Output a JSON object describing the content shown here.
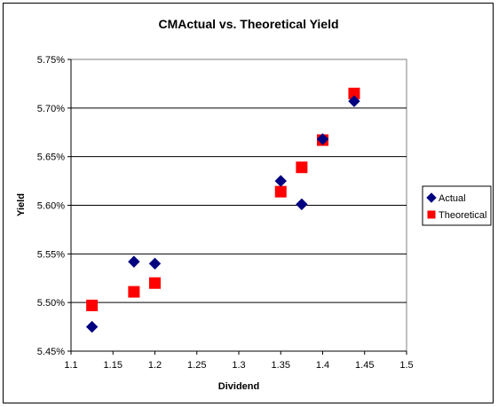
{
  "chart_data": {
    "type": "scatter",
    "title": "CMActual vs. Theoretical Yield",
    "xlabel": "Dividend",
    "ylabel": "Yield",
    "xlim": [
      1.1,
      1.5
    ],
    "ylim": [
      5.45,
      5.75
    ],
    "x_ticks": [
      "1.1",
      "1.15",
      "1.2",
      "1.25",
      "1.3",
      "1.35",
      "1.4",
      "1.45",
      "1.5"
    ],
    "y_ticks": [
      "5.45%",
      "5.50%",
      "5.55%",
      "5.60%",
      "5.65%",
      "5.70%",
      "5.75%"
    ],
    "grid": "horizontal major gridlines",
    "legend_position": "right",
    "series": [
      {
        "name": "Actual",
        "marker": "diamond",
        "color": "#000080",
        "points": [
          {
            "x": 1.125,
            "y": 5.475
          },
          {
            "x": 1.175,
            "y": 5.542
          },
          {
            "x": 1.2,
            "y": 5.54
          },
          {
            "x": 1.35,
            "y": 5.625
          },
          {
            "x": 1.375,
            "y": 5.601
          },
          {
            "x": 1.4,
            "y": 5.668
          },
          {
            "x": 1.4375,
            "y": 5.707
          }
        ]
      },
      {
        "name": "Theoretical",
        "marker": "square",
        "color": "#ff0000",
        "points": [
          {
            "x": 1.125,
            "y": 5.497
          },
          {
            "x": 1.175,
            "y": 5.511
          },
          {
            "x": 1.2,
            "y": 5.52
          },
          {
            "x": 1.35,
            "y": 5.614
          },
          {
            "x": 1.375,
            "y": 5.639
          },
          {
            "x": 1.4,
            "y": 5.667
          },
          {
            "x": 1.4375,
            "y": 5.715
          }
        ]
      }
    ]
  }
}
